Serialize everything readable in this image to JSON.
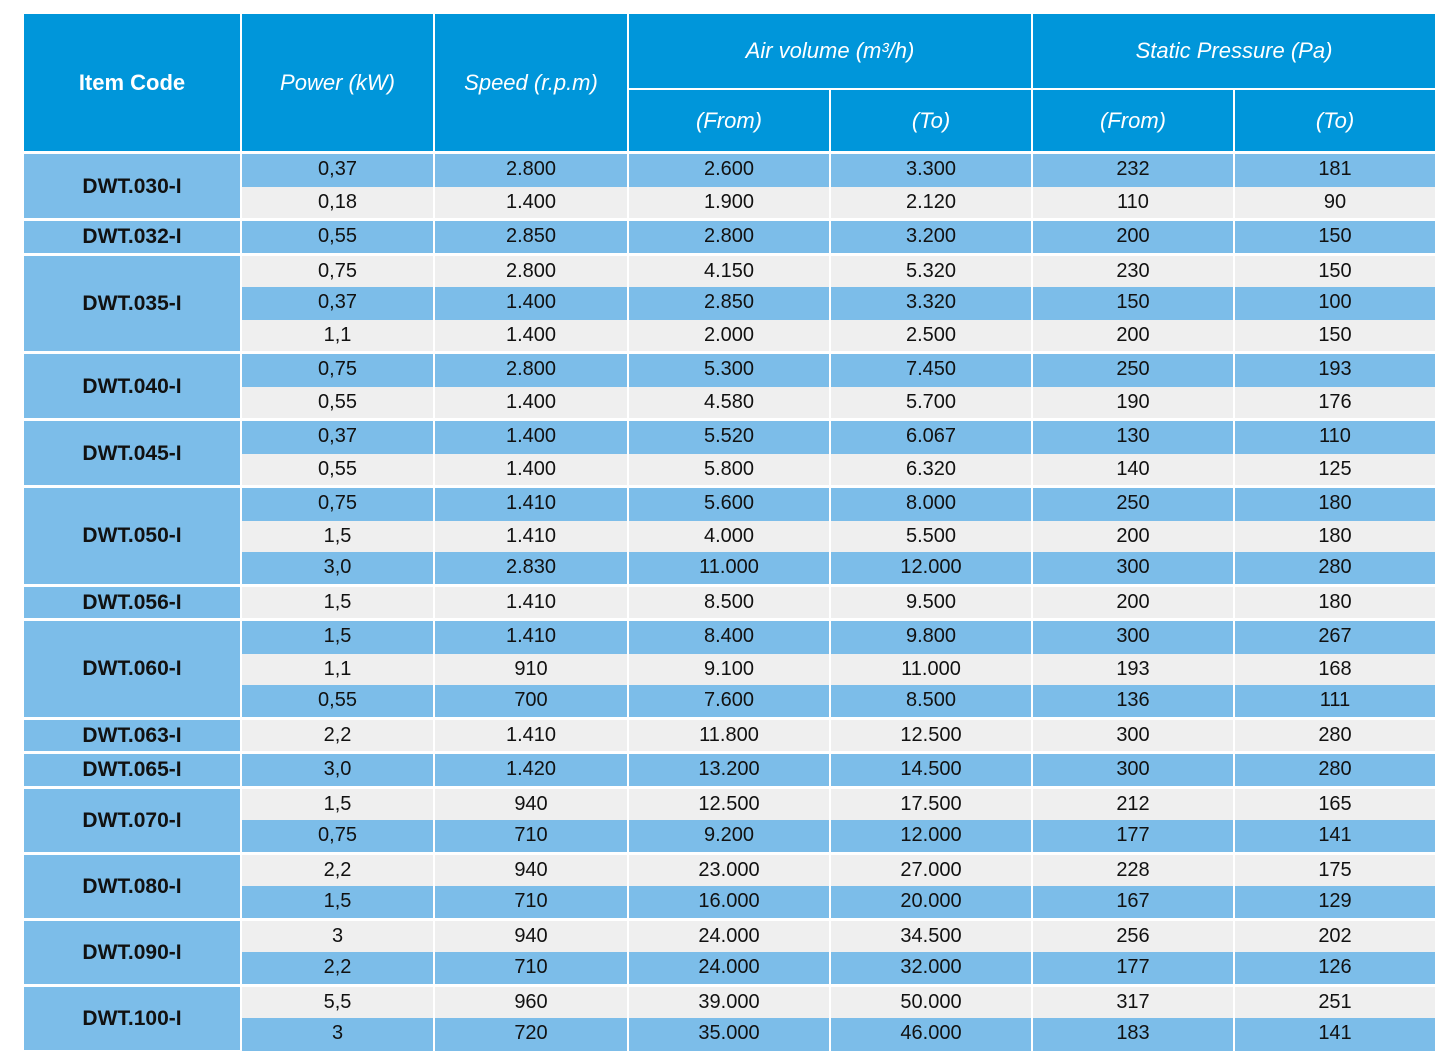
{
  "header": {
    "item_code": "Item Code",
    "power": "Power (kW)",
    "speed": "Speed (r.p.m)",
    "air_volume": "Air volume (m³/h)",
    "static_pressure": "Static Pressure (Pa)",
    "from": "(From)",
    "to": "(To)"
  },
  "colors": {
    "header": "#0096da",
    "row_blue": "#7cbde9",
    "row_gray": "#efefef"
  },
  "groups": [
    {
      "code": "DWT.030-I",
      "rows": [
        [
          "0,37",
          "2.800",
          "2.600",
          "3.300",
          "232",
          "181"
        ],
        [
          "0,18",
          "1.400",
          "1.900",
          "2.120",
          "110",
          "90"
        ]
      ]
    },
    {
      "code": "DWT.032-I",
      "rows": [
        [
          "0,55",
          "2.850",
          "2.800",
          "3.200",
          "200",
          "150"
        ]
      ]
    },
    {
      "code": "DWT.035-I",
      "rows": [
        [
          "0,75",
          "2.800",
          "4.150",
          "5.320",
          "230",
          "150"
        ],
        [
          "0,37",
          "1.400",
          "2.850",
          "3.320",
          "150",
          "100"
        ],
        [
          "1,1",
          "1.400",
          "2.000",
          "2.500",
          "200",
          "150"
        ]
      ]
    },
    {
      "code": "DWT.040-I",
      "rows": [
        [
          "0,75",
          "2.800",
          "5.300",
          "7.450",
          "250",
          "193"
        ],
        [
          "0,55",
          "1.400",
          "4.580",
          "5.700",
          "190",
          "176"
        ]
      ]
    },
    {
      "code": "DWT.045-I",
      "rows": [
        [
          "0,37",
          "1.400",
          "5.520",
          "6.067",
          "130",
          "110"
        ],
        [
          "0,55",
          "1.400",
          "5.800",
          "6.320",
          "140",
          "125"
        ]
      ]
    },
    {
      "code": "DWT.050-I",
      "rows": [
        [
          "0,75",
          "1.410",
          "5.600",
          "8.000",
          "250",
          "180"
        ],
        [
          "1,5",
          "1.410",
          "4.000",
          "5.500",
          "200",
          "180"
        ],
        [
          "3,0",
          "2.830",
          "11.000",
          "12.000",
          "300",
          "280"
        ]
      ]
    },
    {
      "code": "DWT.056-I",
      "rows": [
        [
          "1,5",
          "1.410",
          "8.500",
          "9.500",
          "200",
          "180"
        ]
      ]
    },
    {
      "code": "DWT.060-I",
      "rows": [
        [
          "1,5",
          "1.410",
          "8.400",
          "9.800",
          "300",
          "267"
        ],
        [
          "1,1",
          "910",
          "9.100",
          "11.000",
          "193",
          "168"
        ],
        [
          "0,55",
          "700",
          "7.600",
          "8.500",
          "136",
          "111"
        ]
      ]
    },
    {
      "code": "DWT.063-I",
      "rows": [
        [
          "2,2",
          "1.410",
          "11.800",
          "12.500",
          "300",
          "280"
        ]
      ]
    },
    {
      "code": "DWT.065-I",
      "rows": [
        [
          "3,0",
          "1.420",
          "13.200",
          "14.500",
          "300",
          "280"
        ]
      ]
    },
    {
      "code": "DWT.070-I",
      "rows": [
        [
          "1,5",
          "940",
          "12.500",
          "17.500",
          "212",
          "165"
        ],
        [
          "0,75",
          "710",
          "9.200",
          "12.000",
          "177",
          "141"
        ]
      ]
    },
    {
      "code": "DWT.080-I",
      "rows": [
        [
          "2,2",
          "940",
          "23.000",
          "27.000",
          "228",
          "175"
        ],
        [
          "1,5",
          "710",
          "16.000",
          "20.000",
          "167",
          "129"
        ]
      ]
    },
    {
      "code": "DWT.090-I",
      "rows": [
        [
          "3",
          "940",
          "24.000",
          "34.500",
          "256",
          "202"
        ],
        [
          "2,2",
          "710",
          "24.000",
          "32.000",
          "177",
          "126"
        ]
      ]
    },
    {
      "code": "DWT.100-I",
      "rows": [
        [
          "5,5",
          "960",
          "39.000",
          "50.000",
          "317",
          "251"
        ],
        [
          "3",
          "720",
          "35.000",
          "46.000",
          "183",
          "141"
        ]
      ]
    }
  ]
}
